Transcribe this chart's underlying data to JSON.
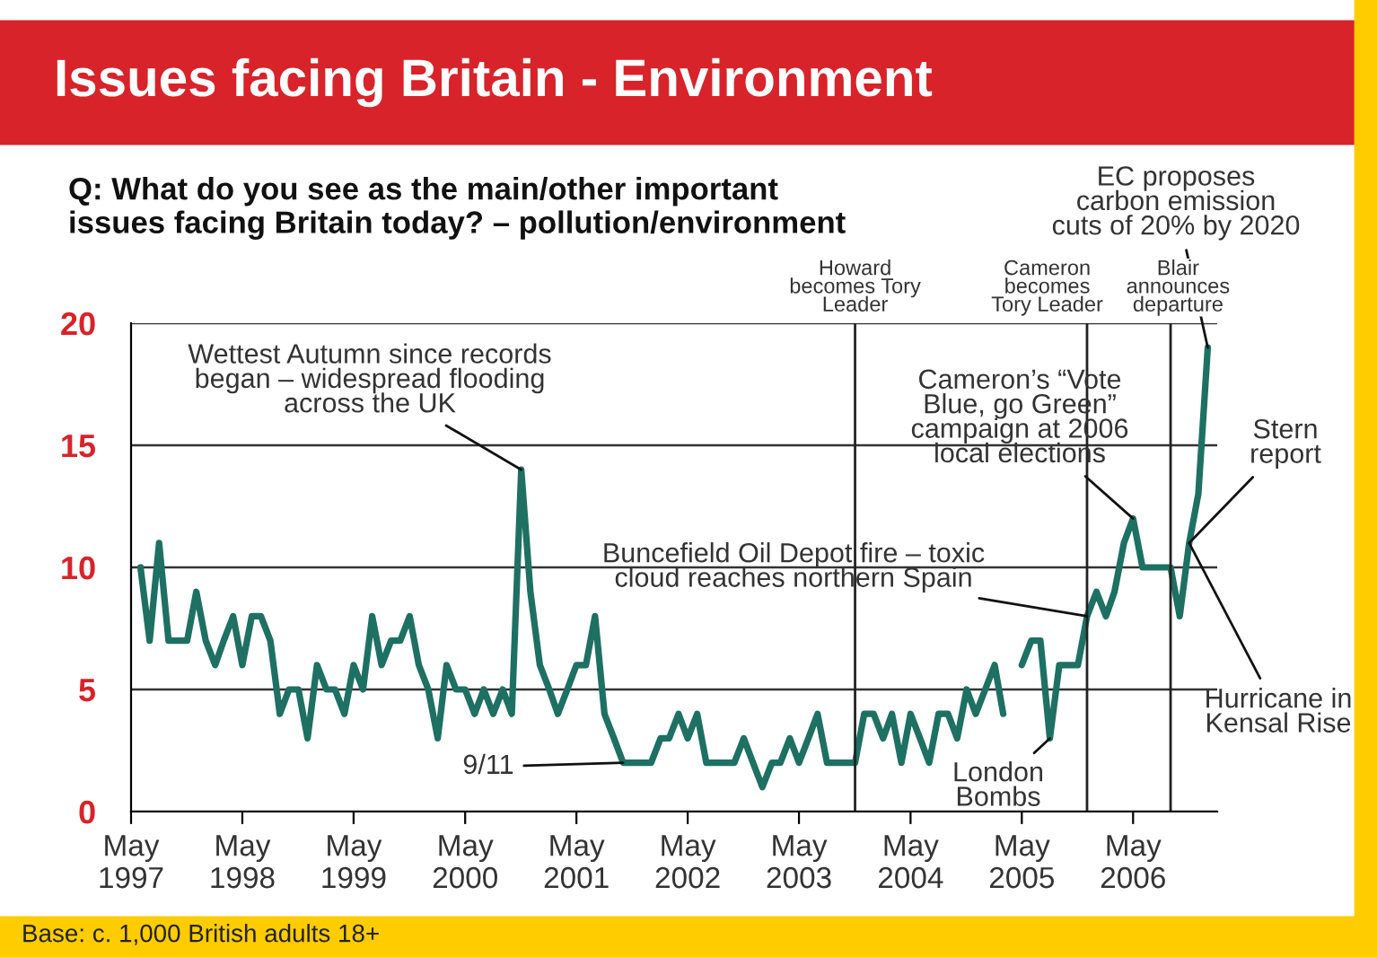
{
  "chart_data": {
    "type": "line",
    "title": "Issues facing Britain - Environment",
    "subtitle": "Q: What do you see as the main/other important\nissues facing Britain today? – pollution/environment",
    "x": [
      "1997-06",
      "1997-07",
      "1997-08",
      "1997-09",
      "1997-10",
      "1997-11",
      "1997-12",
      "1998-01",
      "1998-02",
      "1998-03",
      "1998-04",
      "1998-05",
      "1998-06",
      "1998-07",
      "1998-08",
      "1998-09",
      "1998-10",
      "1998-11",
      "1998-12",
      "1999-01",
      "1999-02",
      "1999-03",
      "1999-04",
      "1999-05",
      "1999-06",
      "1999-07",
      "1999-08",
      "1999-09",
      "1999-10",
      "1999-11",
      "1999-12",
      "2000-01",
      "2000-02",
      "2000-03",
      "2000-04",
      "2000-05",
      "2000-06",
      "2000-07",
      "2000-08",
      "2000-09",
      "2000-10",
      "2000-11",
      "2000-12",
      "2001-01",
      "2001-02",
      "2001-03",
      "2001-04",
      "2001-05",
      "2001-06",
      "2001-07",
      "2001-08",
      "2001-09",
      "2001-10",
      "2001-11",
      "2001-12",
      "2002-01",
      "2002-02",
      "2002-03",
      "2002-04",
      "2002-05",
      "2002-06",
      "2002-07",
      "2002-08",
      "2002-09",
      "2002-10",
      "2002-11",
      "2002-12",
      "2003-01",
      "2003-02",
      "2003-03",
      "2003-04",
      "2003-05",
      "2003-06",
      "2003-07",
      "2003-08",
      "2003-09",
      "2003-10",
      "2003-11",
      "2003-12",
      "2004-01",
      "2004-02",
      "2004-03",
      "2004-04",
      "2004-05",
      "2004-06",
      "2004-07",
      "2004-08",
      "2004-09",
      "2004-10",
      "2004-11",
      "2004-12",
      "2005-01",
      "2005-02",
      "2005-03",
      "2005-04",
      "2005-05",
      "2005-06",
      "2005-07",
      "2005-08",
      "2005-09",
      "2005-10",
      "2005-11",
      "2005-12",
      "2006-01",
      "2006-02",
      "2006-03",
      "2006-04",
      "2006-05",
      "2006-06",
      "2006-07",
      "2006-08",
      "2006-09",
      "2006-10",
      "2006-11",
      "2006-12",
      "2007-01"
    ],
    "series": [
      {
        "color": "#1e7063",
        "values": [
          10,
          7,
          11,
          7,
          7,
          7,
          9,
          7,
          6,
          7,
          8,
          6,
          8,
          8,
          7,
          4,
          5,
          5,
          3,
          6,
          5,
          5,
          4,
          6,
          5,
          8,
          6,
          7,
          7,
          8,
          6,
          5,
          3,
          6,
          5,
          5,
          4,
          5,
          4,
          5,
          4,
          14,
          9,
          6,
          5,
          4,
          5,
          6,
          6,
          8,
          4,
          3,
          2,
          2,
          2,
          2,
          3,
          3,
          4,
          3,
          4,
          2,
          2,
          2,
          2,
          3,
          2,
          1,
          2,
          2,
          3,
          2,
          3,
          4,
          2,
          2,
          2,
          2,
          4,
          4,
          3,
          4,
          2,
          4,
          3,
          2,
          4,
          4,
          3,
          5,
          4,
          5,
          6,
          4,
          null,
          6,
          7,
          7,
          3,
          6,
          6,
          6,
          8,
          9,
          8,
          9,
          11,
          12,
          10,
          10,
          10,
          10,
          8,
          11,
          13,
          19
        ]
      }
    ],
    "xlim": [
      "1997-05",
      "2007-02"
    ],
    "xticks": [
      {
        "value": "1997-05",
        "label": "May\n1997"
      },
      {
        "value": "1998-05",
        "label": "May\n1998"
      },
      {
        "value": "1999-05",
        "label": "May\n1999"
      },
      {
        "value": "2000-05",
        "label": "May\n2000"
      },
      {
        "value": "2001-05",
        "label": "May\n2001"
      },
      {
        "value": "2002-05",
        "label": "May\n2002"
      },
      {
        "value": "2003-05",
        "label": "May\n2003"
      },
      {
        "value": "2004-05",
        "label": "May\n2004"
      },
      {
        "value": "2005-05",
        "label": "May\n2005"
      },
      {
        "value": "2006-05",
        "label": "May\n2006"
      }
    ],
    "ylim": [
      0,
      20
    ],
    "yticks": [
      0,
      5,
      10,
      15,
      20
    ],
    "grid": "y",
    "ref_lines": [
      {
        "axis": "x",
        "value": "2003-11",
        "label": "Howard\nbecomes Tory\nLeader",
        "color": "#222222"
      },
      {
        "axis": "x",
        "value": "2005-12",
        "label": "Cameron\nbecomes\nTory Leader",
        "color": "#222222"
      },
      {
        "axis": "x",
        "value": "2006-09",
        "label": "Blair\nannounces\ndeparture",
        "color": "#222222"
      }
    ],
    "annotations": [
      {
        "text": "Wettest Autumn since records\nbegan – widespread flooding\nacross the UK",
        "x": "2000-11",
        "y": 14
      },
      {
        "text": "9/11",
        "x": "2001-10",
        "y": 2
      },
      {
        "text": "Buncefield Oil Depot fire – toxic\ncloud reaches northern Spain",
        "x": "2005-12",
        "y": 8
      },
      {
        "text": "London\nBombs",
        "x": "2005-08",
        "y": 3
      },
      {
        "text": "Cameron’s “Vote\nBlue, go Green”\ncampaign at 2006\nlocal elections",
        "x": "2006-05",
        "y": 12
      },
      {
        "text": "EC proposes\ncarbon emission\ncuts of 20% by 2020",
        "x": "2007-01",
        "y": 19
      },
      {
        "text": "Stern\nreport",
        "x": "2006-11",
        "y": 11
      },
      {
        "text": "Hurricane in\nKensal Rise",
        "x": "2006-11",
        "y": 11
      },
      "Base: c. 1,000 British adults 18+"
    ]
  }
}
